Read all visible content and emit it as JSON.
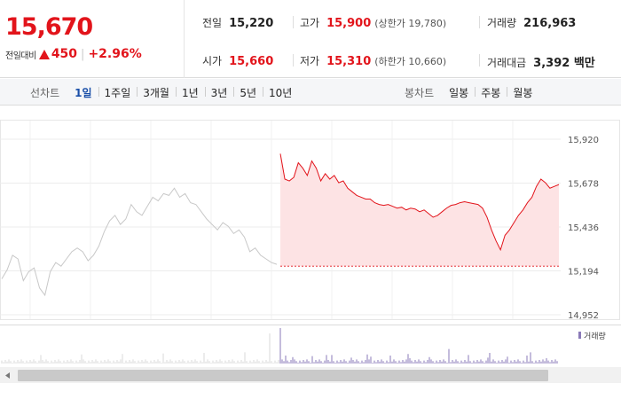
{
  "summary": {
    "price": "15,670",
    "change_label": "전일대비",
    "change_value": "450",
    "change_rate": "+2.96%"
  },
  "stats": {
    "prev_close_label": "전일",
    "prev_close": "15,220",
    "high_label": "고가",
    "high": "15,900",
    "upper_limit": "(상한가 19,780)",
    "volume_label": "거래량",
    "volume": "216,963",
    "open_label": "시가",
    "open": "15,660",
    "low_label": "저가",
    "low": "15,310",
    "lower_limit": "(하한가 10,660)",
    "amount_label": "거래대금",
    "amount": "3,392 백만"
  },
  "line_chart": {
    "title": "선차트",
    "periods": [
      "1일",
      "1주일",
      "3개월",
      "1년",
      "3년",
      "5년",
      "10년"
    ],
    "active": "1일"
  },
  "candle_chart": {
    "title": "봉차트",
    "periods": [
      "일봉",
      "주봉",
      "월봉"
    ]
  },
  "colors": {
    "up": "#e2141b",
    "down": "#1565c0",
    "fill": "#fde3e4",
    "prev_day_line": "#c8c8c8",
    "volume": "#8a7ab8"
  },
  "chart_data": {
    "type": "line",
    "y_ticks": [
      "15,920",
      "15,678",
      "15,436",
      "15,194",
      "14,952"
    ],
    "y_tick_values": [
      15920,
      15678,
      15436,
      15194,
      14952
    ],
    "ylim": [
      14952,
      15920
    ],
    "base_price": 15220,
    "legend": "거래량",
    "series": [
      {
        "values": [
          15150,
          15200,
          15280,
          15260,
          15140,
          15190,
          15210,
          15100,
          15060,
          15190,
          15240,
          15220,
          15260,
          15300,
          15320,
          15300,
          15250,
          15280,
          15330,
          15410,
          15470,
          15500,
          15450,
          15480,
          15560,
          15520,
          15500,
          15550,
          15600,
          15580,
          15620,
          15610,
          15650,
          15600,
          15620,
          15570,
          15560,
          15520,
          15480,
          15450,
          15420,
          15460,
          15440,
          15400,
          15420,
          15380,
          15300,
          15320,
          15280,
          15260,
          15240,
          15230
        ]
      },
      {
        "values": [
          15840,
          15700,
          15690,
          15710,
          15790,
          15760,
          15720,
          15800,
          15760,
          15690,
          15730,
          15700,
          15720,
          15680,
          15690,
          15650,
          15630,
          15610,
          15600,
          15590,
          15590,
          15570,
          15560,
          15555,
          15560,
          15550,
          15540,
          15545,
          15530,
          15540,
          15535,
          15520,
          15530,
          15510,
          15490,
          15500,
          15520,
          15540,
          15555,
          15560,
          15570,
          15575,
          15570,
          15565,
          15560,
          15540,
          15490,
          15420,
          15360,
          15310,
          15390,
          15420,
          15460,
          15500,
          15530,
          15570,
          15600,
          15660,
          15700,
          15680,
          15650,
          15660,
          15670
        ]
      }
    ],
    "volume": {
      "legend": "거래량"
    }
  }
}
